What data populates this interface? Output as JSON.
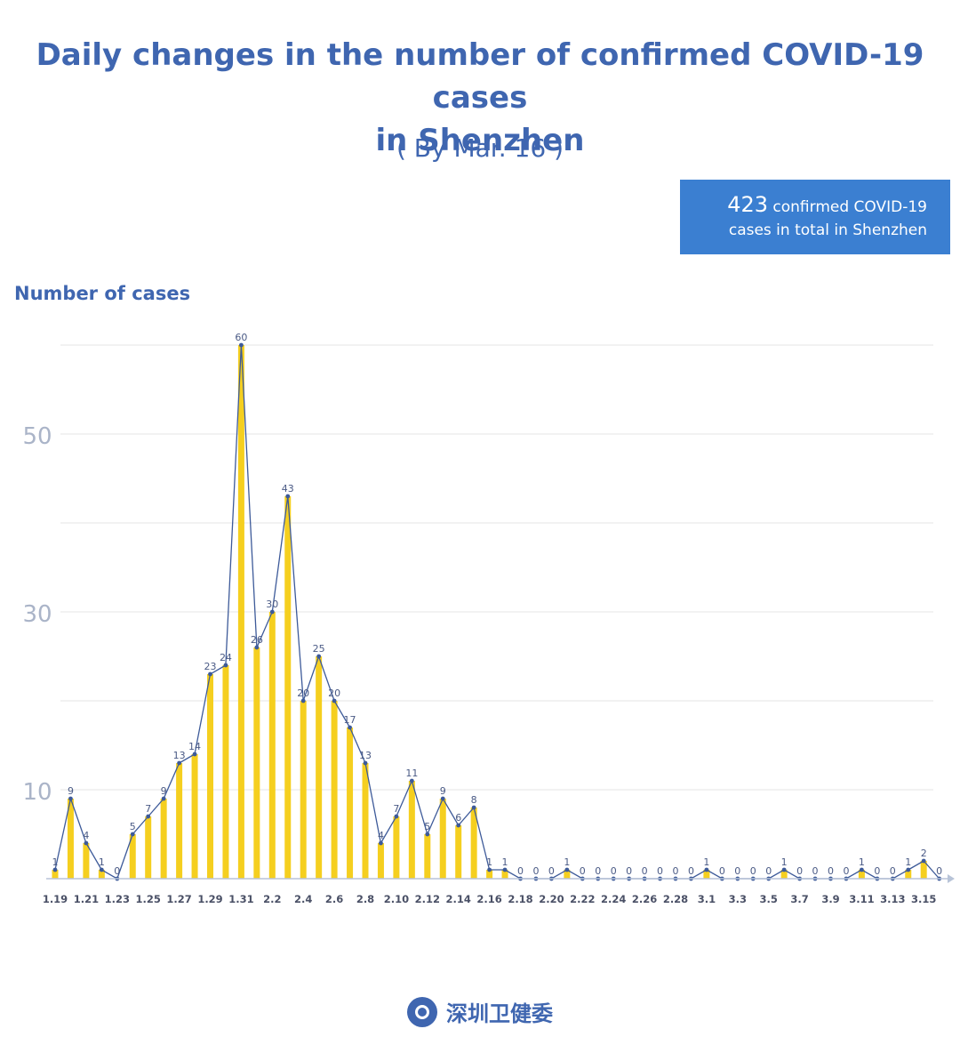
{
  "header": {
    "title_line1": "Daily changes in the number of confirmed COVID-19 cases",
    "title_line2": "in Shenzhen",
    "subtitle": "( By Mar. 16 )"
  },
  "total_box": {
    "number": "423",
    "line1_rest": " confirmed COVID-19",
    "line2": "cases in total in Shenzhen"
  },
  "footer": {
    "org": "深圳卫健委"
  },
  "colors": {
    "bar": "#f5cf1f",
    "line": "#3d5a99",
    "grid": "#e6e6e6",
    "title": "#3f66b0",
    "box": "#3b7fd1"
  },
  "chart_data": {
    "type": "bar",
    "title": "Daily changes in the number of confirmed COVID-19 cases in Shenzhen",
    "ylabel": "Number of cases",
    "xlabel": "",
    "ylim": [
      0,
      60
    ],
    "y_ticks": [
      10,
      30,
      50
    ],
    "grid": true,
    "overlay_line": true,
    "categories": [
      "1.19",
      "1.20",
      "1.21",
      "1.22",
      "1.23",
      "1.24",
      "1.25",
      "1.26",
      "1.27",
      "1.28",
      "1.29",
      "1.30",
      "1.31",
      "2.1",
      "2.2",
      "2.3",
      "2.4",
      "2.5",
      "2.6",
      "2.7",
      "2.8",
      "2.9",
      "2.10",
      "2.11",
      "2.12",
      "2.13",
      "2.14",
      "2.15",
      "2.16",
      "2.17",
      "2.18",
      "2.19",
      "2.20",
      "2.21",
      "2.22",
      "2.23",
      "2.24",
      "2.25",
      "2.26",
      "2.27",
      "2.28",
      "2.29",
      "3.1",
      "3.2",
      "3.3",
      "3.4",
      "3.5",
      "3.6",
      "3.7",
      "3.8",
      "3.9",
      "3.10",
      "3.11",
      "3.12",
      "3.13",
      "3.14",
      "3.15",
      "3.16"
    ],
    "x_tick_labels": [
      "1.19",
      "1.21",
      "1.23",
      "1.25",
      "1.27",
      "1.29",
      "1.31",
      "2.2",
      "2.4",
      "2.6",
      "2.8",
      "2.10",
      "2.12",
      "2.14",
      "2.16",
      "2.18",
      "2.20",
      "2.22",
      "2.24",
      "2.26",
      "2.28",
      "3.1",
      "3.3",
      "3.5",
      "3.7",
      "3.9",
      "3.11",
      "3.13",
      "3.15"
    ],
    "values": [
      1,
      9,
      4,
      1,
      0,
      5,
      7,
      9,
      13,
      14,
      23,
      24,
      60,
      26,
      30,
      43,
      20,
      25,
      20,
      17,
      13,
      4,
      7,
      11,
      5,
      9,
      6,
      8,
      1,
      1,
      0,
      0,
      0,
      1,
      0,
      0,
      0,
      0,
      0,
      0,
      0,
      0,
      1,
      0,
      0,
      0,
      0,
      1,
      0,
      0,
      0,
      0,
      1,
      0,
      0,
      1,
      2,
      0
    ]
  }
}
